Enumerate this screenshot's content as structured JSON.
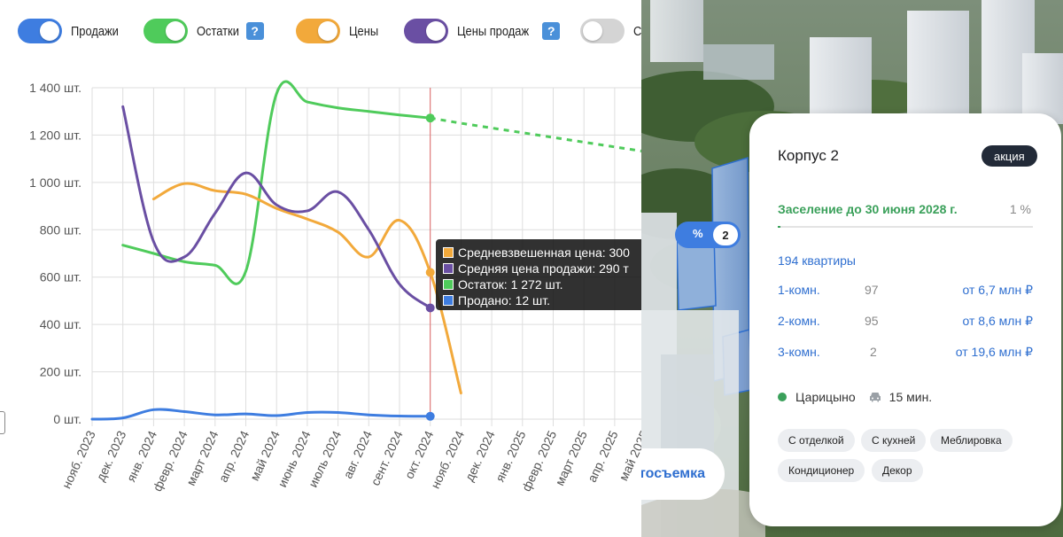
{
  "toggles": [
    {
      "label": "Продажи",
      "color": "#3e7de0",
      "on": true,
      "help": false
    },
    {
      "label": "Остатки",
      "color": "#4fcb5b",
      "on": true,
      "help": true
    },
    {
      "label": "Цены",
      "color": "#f2a93b",
      "on": true,
      "help": false
    },
    {
      "label": "Цены продаж",
      "color": "#6a4fa3",
      "on": true,
      "help": true
    },
    {
      "label": "Со",
      "color": "#d4d4d4",
      "on": false,
      "help": false
    }
  ],
  "help_glyph": "?",
  "chart_data": {
    "type": "line",
    "y_ticks": [
      "1 400 шт.",
      "1 200 шт.",
      "1 000 шт.",
      "800 шт.",
      "600 шт.",
      "400 шт.",
      "200 шт.",
      "0 шт."
    ],
    "ylim": [
      0,
      1400
    ],
    "categories": [
      "нояб. 2023",
      "дек. 2023",
      "янв. 2024",
      "февр. 2024",
      "март 2024",
      "апр. 2024",
      "май 2024",
      "июнь 2024",
      "июль 2024",
      "авг. 2024",
      "сент. 2024",
      "окт. 2024",
      "нояб. 2024",
      "дек. 2024",
      "янв. 2025",
      "февр. 2025",
      "март 2025",
      "апр. 2025",
      "май 2025"
    ],
    "cursor_index": 11,
    "grid": true,
    "series": [
      {
        "key": "remains",
        "color": "#4fcb5b",
        "values": [
          null,
          735,
          700,
          665,
          650,
          625,
          1375,
          1340,
          1315,
          1300,
          1285,
          1272,
          null,
          null,
          null,
          null,
          null,
          null,
          null
        ],
        "forecast": {
          "from_index": 11,
          "values": [
            1272,
            1250,
            1230,
            1210,
            1190,
            1170,
            1150,
            1130
          ]
        }
      },
      {
        "key": "avg_price",
        "color": "#f2a93b",
        "values": [
          null,
          null,
          930,
          995,
          965,
          950,
          890,
          845,
          790,
          685,
          840,
          620,
          110,
          null,
          null,
          null,
          null,
          null,
          null
        ]
      },
      {
        "key": "sale_price",
        "color": "#6a4fa3",
        "values": [
          null,
          1320,
          750,
          685,
          870,
          1040,
          905,
          880,
          960,
          800,
          570,
          470,
          null,
          null,
          null,
          null,
          null,
          null,
          null
        ]
      },
      {
        "key": "sold",
        "color": "#3e7de0",
        "values": [
          0,
          5,
          40,
          32,
          18,
          22,
          15,
          28,
          28,
          18,
          13,
          12,
          null,
          null,
          null,
          null,
          null,
          null,
          null
        ]
      }
    ],
    "tooltip": [
      {
        "color": "#f2a93b",
        "text": "Средневзвешенная цена: 300"
      },
      {
        "color": "#6a4fa3",
        "text": "Средняя цена продажи: 290 т"
      },
      {
        "color": "#4fcb5b",
        "text": "Остаток: 1 272 шт."
      },
      {
        "color": "#3e7de0",
        "text": "Продано: 12 шт."
      }
    ]
  },
  "overlay": {
    "percent_label": "%",
    "percent_count": "2",
    "aerial_label": "тосъемка"
  },
  "card": {
    "title": "Корпус 2",
    "badge": "акция",
    "settlement": "Заселение до 30 июня 2028 г.",
    "progress_text": "1 %",
    "progress_value": 0.01,
    "flats_total": "194 квартиры",
    "flats": [
      {
        "type": "1-комн.",
        "count": "97",
        "price": "от 6,7 млн ₽"
      },
      {
        "type": "2-комн.",
        "count": "95",
        "price": "от 8,6 млн ₽"
      },
      {
        "type": "3-комн.",
        "count": "2",
        "price": "от 19,6 млн ₽"
      }
    ],
    "metro": "Царицыно",
    "travel": "15 мин.",
    "tags": [
      "С отделкой",
      "С кухней",
      "Меблировка",
      "Кондиционер",
      "Декор"
    ]
  }
}
